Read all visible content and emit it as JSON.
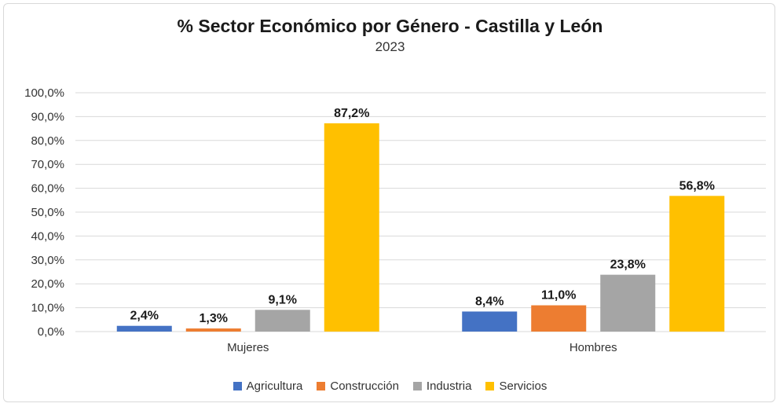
{
  "chart_data": {
    "type": "bar",
    "title": "% Sector Económico por Género - Castilla y León",
    "subtitle": "2023",
    "categories": [
      "Mujeres",
      "Hombres"
    ],
    "series": [
      {
        "name": "Agricultura",
        "color": "#4472C4",
        "values": [
          2.4,
          8.4
        ],
        "labels": [
          "2,4%",
          "8,4%"
        ]
      },
      {
        "name": "Construcción",
        "color": "#ED7D31",
        "values": [
          1.3,
          11.0
        ],
        "labels": [
          "1,3%",
          "11,0%"
        ]
      },
      {
        "name": "Industria",
        "color": "#A5A5A5",
        "values": [
          9.1,
          23.8
        ],
        "labels": [
          "9,1%",
          "23,8%"
        ]
      },
      {
        "name": "Servicios",
        "color": "#FFC000",
        "values": [
          87.2,
          56.8
        ],
        "labels": [
          "87,2%",
          "56,8%"
        ]
      }
    ],
    "ylim": [
      0,
      100
    ],
    "yticks": [
      "0,0%",
      "10,0%",
      "20,0%",
      "30,0%",
      "40,0%",
      "50,0%",
      "60,0%",
      "70,0%",
      "80,0%",
      "90,0%",
      "100,0%"
    ],
    "grid": true,
    "legend": "bottom"
  }
}
